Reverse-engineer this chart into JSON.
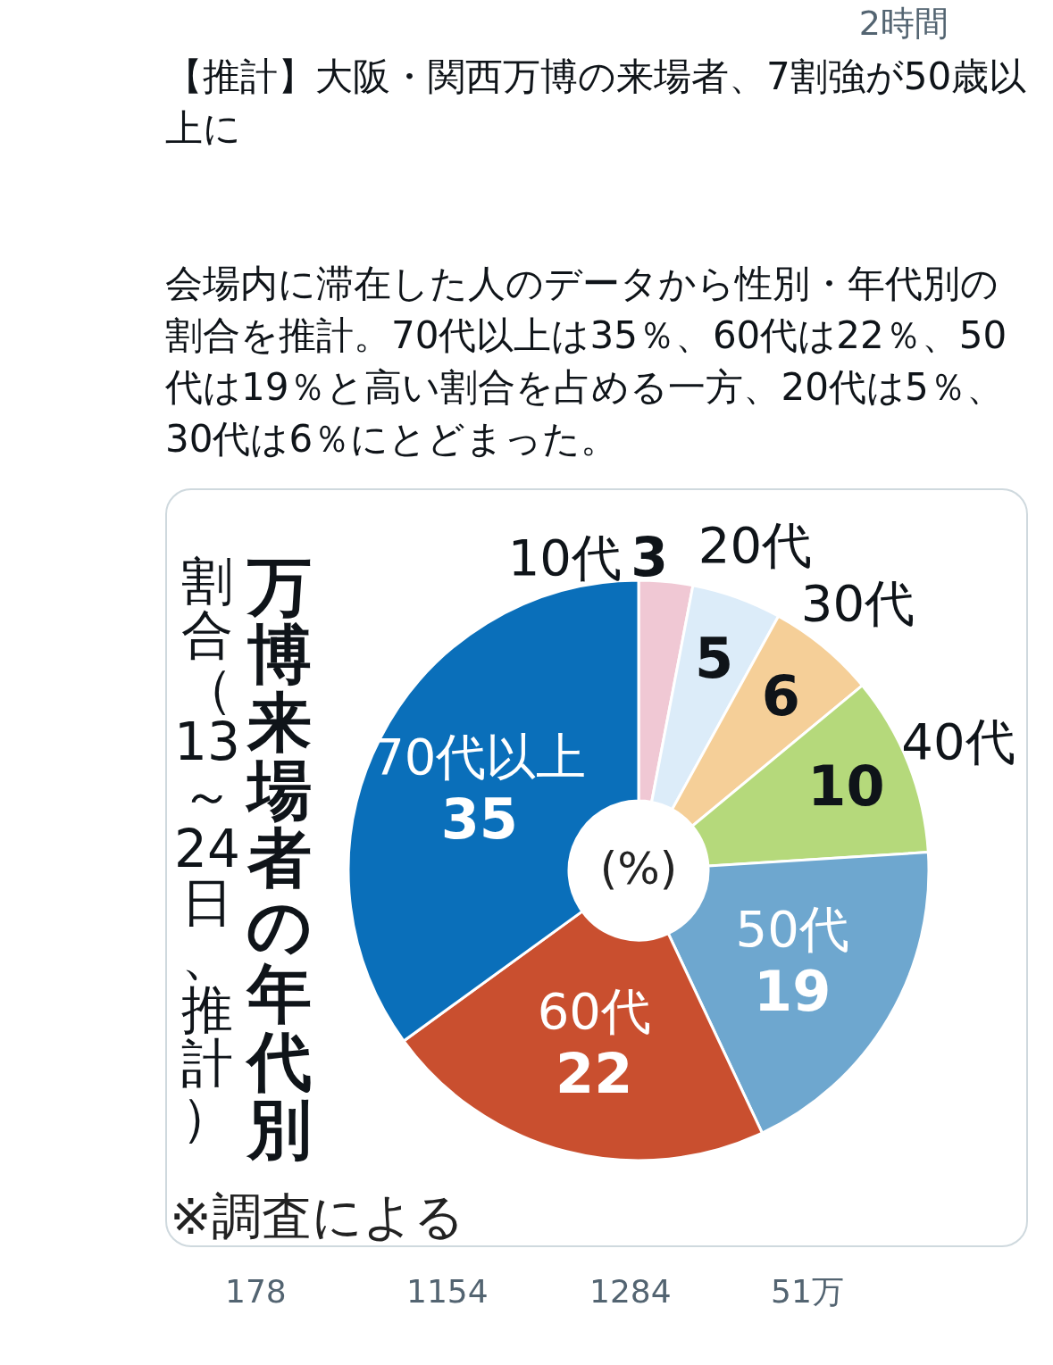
{
  "chart_data": {
    "type": "donut",
    "title": "万博来場者の年代別",
    "subtitle": "割合（13～24日、推計）",
    "categories": [
      "10代",
      "20代",
      "30代",
      "40代",
      "50代",
      "60代",
      "70代以上"
    ],
    "values": [
      3,
      5,
      6,
      10,
      19,
      22,
      35
    ],
    "colors": [
      "#f0c8d4",
      "#dcecf9",
      "#f5cf98",
      "#b5d97b",
      "#6ea7cf",
      "#c94f2f",
      "#0a6fba"
    ],
    "data_labels": true,
    "annotations": [
      "2時間",
      "【推計】大阪・関西万博の来場者、7割強が50歳以上に",
      "会場内に滞在した人のデータから性別・年代別の割合を推計。70代以上は35％、60代は22％、50代は19％と高い割合を占める一方、20代は5％、30代は6％にとどまった。",
      "(%)",
      "※調査による",
      "178",
      "1154",
      "1284",
      "51万"
    ]
  }
}
